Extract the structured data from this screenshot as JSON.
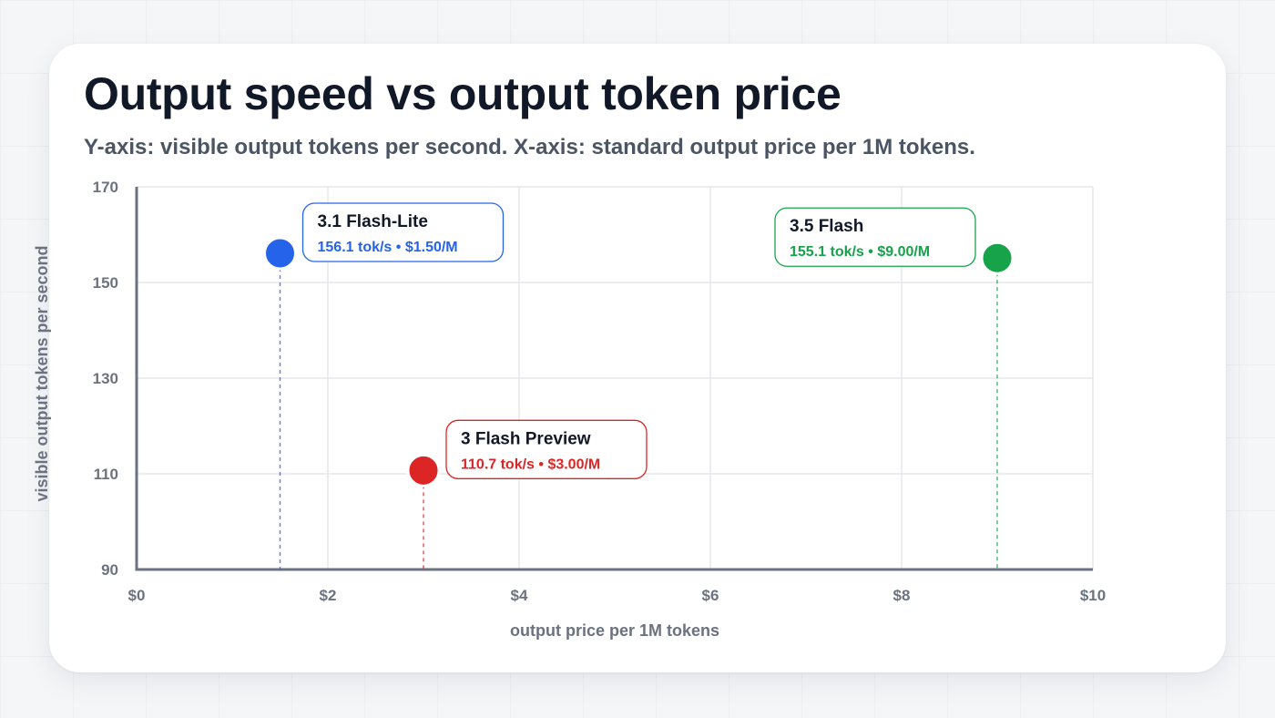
{
  "chart_data": {
    "type": "scatter",
    "title": "Output speed vs output token price",
    "subtitle": "Y-axis: visible output tokens per second. X-axis: standard output price per 1M tokens.",
    "xlabel": "output price per 1M tokens",
    "ylabel": "visible output tokens per second",
    "xlim": [
      0,
      10
    ],
    "ylim": [
      90,
      170
    ],
    "xticks": [
      0,
      2,
      4,
      6,
      8,
      10
    ],
    "xtick_labels": [
      "$0",
      "$2",
      "$4",
      "$6",
      "$8",
      "$10"
    ],
    "yticks": [
      90,
      110,
      130,
      150,
      170
    ],
    "ytick_labels": [
      "90",
      "110",
      "130",
      "150",
      "170"
    ],
    "grid": true,
    "points": [
      {
        "name": "3.1 Flash-Lite",
        "x": 1.5,
        "y": 156.1,
        "label": "156.1 tok/s • $1.50/M",
        "color": "#2563eb",
        "label_side": "right"
      },
      {
        "name": "3 Flash Preview",
        "x": 3.0,
        "y": 110.7,
        "label": "110.7 tok/s • $3.00/M",
        "color": "#dc2626",
        "label_side": "right"
      },
      {
        "name": "3.5 Flash",
        "x": 9.0,
        "y": 155.1,
        "label": "155.1 tok/s • $9.00/M",
        "color": "#16a34a",
        "label_side": "left"
      }
    ]
  }
}
